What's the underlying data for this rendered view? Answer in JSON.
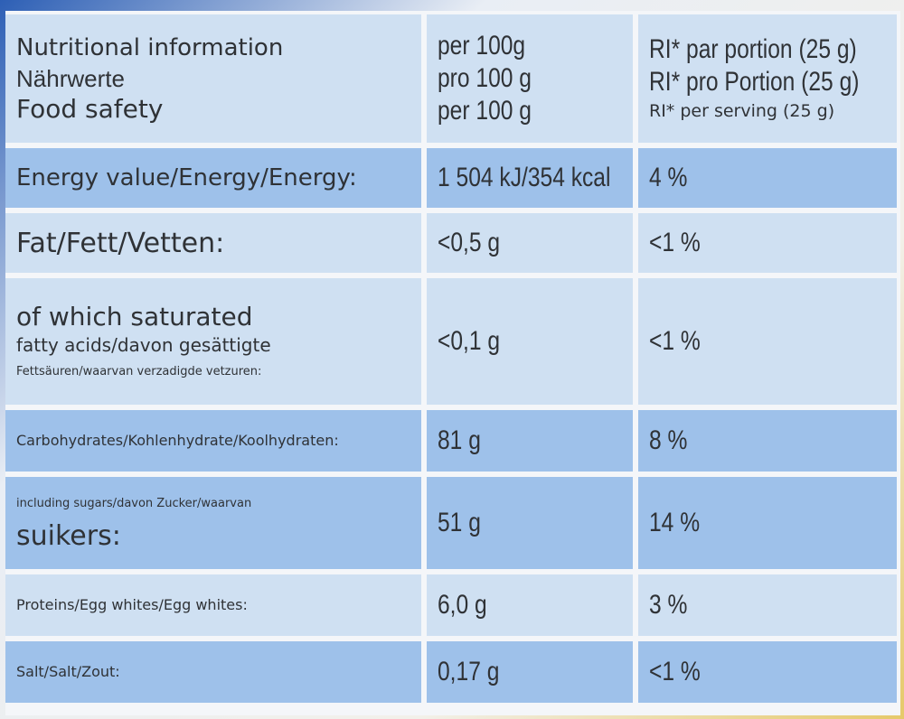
{
  "header": {
    "name_lines": [
      "Nutritional information",
      "Nährwerte",
      "Food safety"
    ],
    "per100_lines": [
      "per 100g",
      "pro 100 g",
      "per 100 g"
    ],
    "ri_lines": [
      "RI* par portion (25 g)",
      "RI* pro Portion (25 g)",
      "RI* per serving (25 g)"
    ]
  },
  "rows": {
    "energy": {
      "label": "Energy value/Energy/Energy:",
      "per100": "1 504 kJ/354 kcal",
      "ri": "4 %"
    },
    "fat": {
      "label": "Fat/Fett/Vetten:",
      "per100": "<0,5 g",
      "ri": "<1 %"
    },
    "saturated": {
      "label_lines": [
        "of which saturated",
        "fatty acids/davon gesättigte",
        "Fettsäuren/waarvan verzadigde vetzuren:"
      ],
      "per100": "<0,1 g",
      "ri": "<1 %"
    },
    "carbs": {
      "label": "Carbohydrates/Kohlenhydrate/Koolhydraten:",
      "per100": "81 g",
      "ri": "8 %"
    },
    "sugars": {
      "label_lines": [
        "including sugars/davon Zucker/waarvan",
        "suikers:"
      ],
      "per100": "51 g",
      "ri": "14 %"
    },
    "proteins": {
      "label": "Proteins/Egg whites/Egg whites:",
      "per100": "6,0 g",
      "ri": "3 %"
    },
    "salt": {
      "label": "Salt/Salt/Zout:",
      "per100": "0,17 g",
      "ri": "<1 %"
    }
  }
}
